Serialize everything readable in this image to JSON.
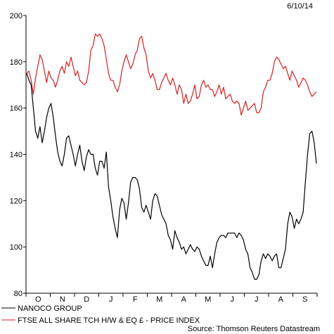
{
  "chart_data": {
    "type": "line",
    "date_label": "6/10/14",
    "source": "Source: Thomson Reuters Datastream",
    "ylim": [
      80,
      200
    ],
    "y_ticks": [
      80,
      100,
      120,
      140,
      160,
      180,
      200
    ],
    "x_tick_labels": [
      "O",
      "N",
      "D",
      "J",
      "F",
      "M",
      "A",
      "M",
      "J",
      "J",
      "A",
      "S"
    ],
    "grid": false,
    "legend_position": "bottom-left",
    "series": [
      {
        "name": "NANOCO GROUP",
        "color": "#000000",
        "values": [
          175,
          172,
          170,
          160,
          150,
          147,
          152,
          145,
          150,
          156,
          160,
          162,
          156,
          148,
          141,
          137,
          135,
          140,
          147,
          148,
          144,
          140,
          135,
          140,
          144,
          137,
          133,
          139,
          142,
          140,
          140,
          134,
          131,
          137,
          137,
          134,
          141,
          126,
          120,
          113,
          108,
          104,
          116,
          121,
          119,
          112,
          119,
          128,
          130,
          130,
          129,
          125,
          117,
          115,
          118,
          115,
          112,
          120,
          123,
          122,
          118,
          114,
          112,
          110,
          105,
          103,
          99,
          107,
          104,
          102,
          99,
          100,
          97,
          99,
          101,
          99,
          98,
          100,
          99,
          96,
          94,
          92,
          92,
          96,
          91,
          97,
          102,
          104,
          105,
          105,
          104,
          106,
          106,
          106,
          106,
          104,
          106,
          105,
          103,
          99,
          97,
          91,
          89,
          86,
          86,
          88,
          94,
          97,
          95,
          97,
          96,
          94,
          96,
          97,
          91,
          91,
          95,
          99,
          110,
          115,
          113,
          108,
          112,
          110,
          112,
          115,
          128,
          140,
          149,
          150,
          145,
          136
        ]
      },
      {
        "name": "FTSE ALL SHARE TCH H/W & EQ £ - PRICE INDEX",
        "color": "#d42020",
        "values": [
          175,
          176,
          172,
          166,
          173,
          178,
          183,
          181,
          176,
          171,
          176,
          173,
          172,
          169,
          172,
          176,
          178,
          175,
          180,
          178,
          182,
          178,
          174,
          176,
          172,
          171,
          170,
          171,
          176,
          185,
          187,
          192,
          191,
          192,
          190,
          187,
          181,
          175,
          172,
          172,
          169,
          167,
          170,
          176,
          180,
          183,
          180,
          177,
          179,
          183,
          185,
          190,
          191,
          186,
          183,
          176,
          173,
          175,
          172,
          168,
          168,
          171,
          173,
          175,
          172,
          170,
          173,
          170,
          166,
          170,
          168,
          162,
          166,
          162,
          163,
          166,
          170,
          164,
          165,
          170,
          172,
          169,
          170,
          168,
          168,
          165,
          167,
          170,
          166,
          169,
          164,
          165,
          166,
          163,
          162,
          163,
          162,
          157,
          160,
          163,
          159,
          160,
          161,
          162,
          158,
          158,
          160,
          167,
          169,
          172,
          172,
          175,
          180,
          182,
          181,
          179,
          177,
          178,
          175,
          172,
          176,
          174,
          172,
          169,
          171,
          173,
          172,
          170,
          167,
          165,
          166,
          167
        ]
      }
    ]
  }
}
